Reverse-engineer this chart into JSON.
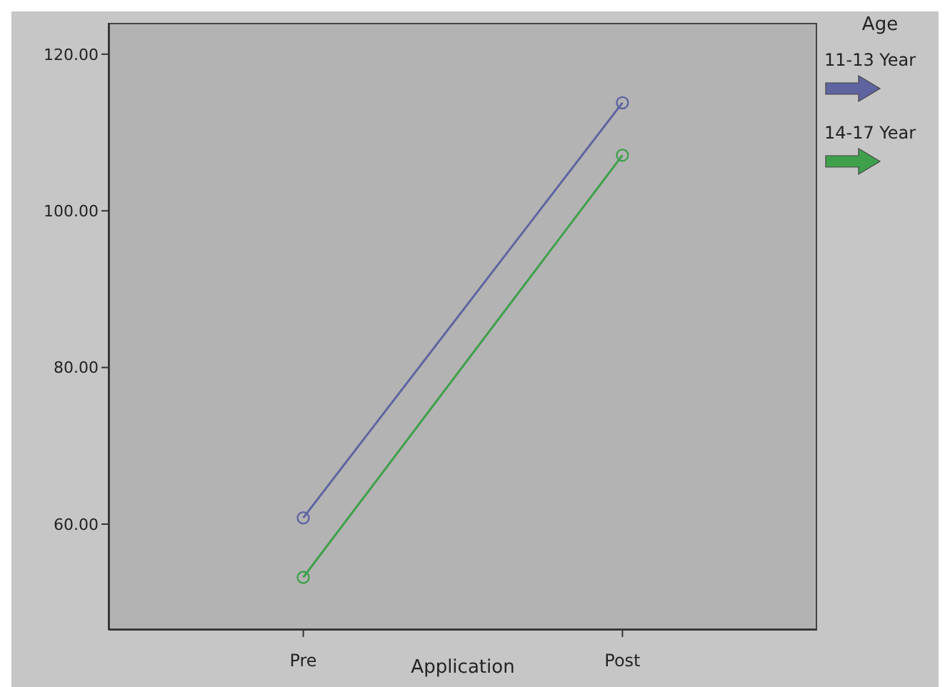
{
  "chart_data": {
    "type": "line",
    "xlabel": "Application",
    "legend_title": "Age",
    "categories": [
      "Pre",
      "Post"
    ],
    "series": [
      {
        "name": "11-13 Year",
        "color": "#5f64a0",
        "values": [
          60.8,
          113.8
        ]
      },
      {
        "name": "14-17 Year",
        "color": "#3fa04c",
        "values": [
          53.2,
          107.1
        ]
      }
    ],
    "ylim": [
      46.5,
      124
    ],
    "yticks": [
      {
        "value": 60,
        "label": "60.00"
      },
      {
        "value": 80,
        "label": "80.00"
      },
      {
        "value": 100,
        "label": "100.00"
      },
      {
        "value": 120,
        "label": "120.00"
      }
    ],
    "grid": false,
    "legend": "right",
    "marker": "circle",
    "line_style": "solid"
  }
}
